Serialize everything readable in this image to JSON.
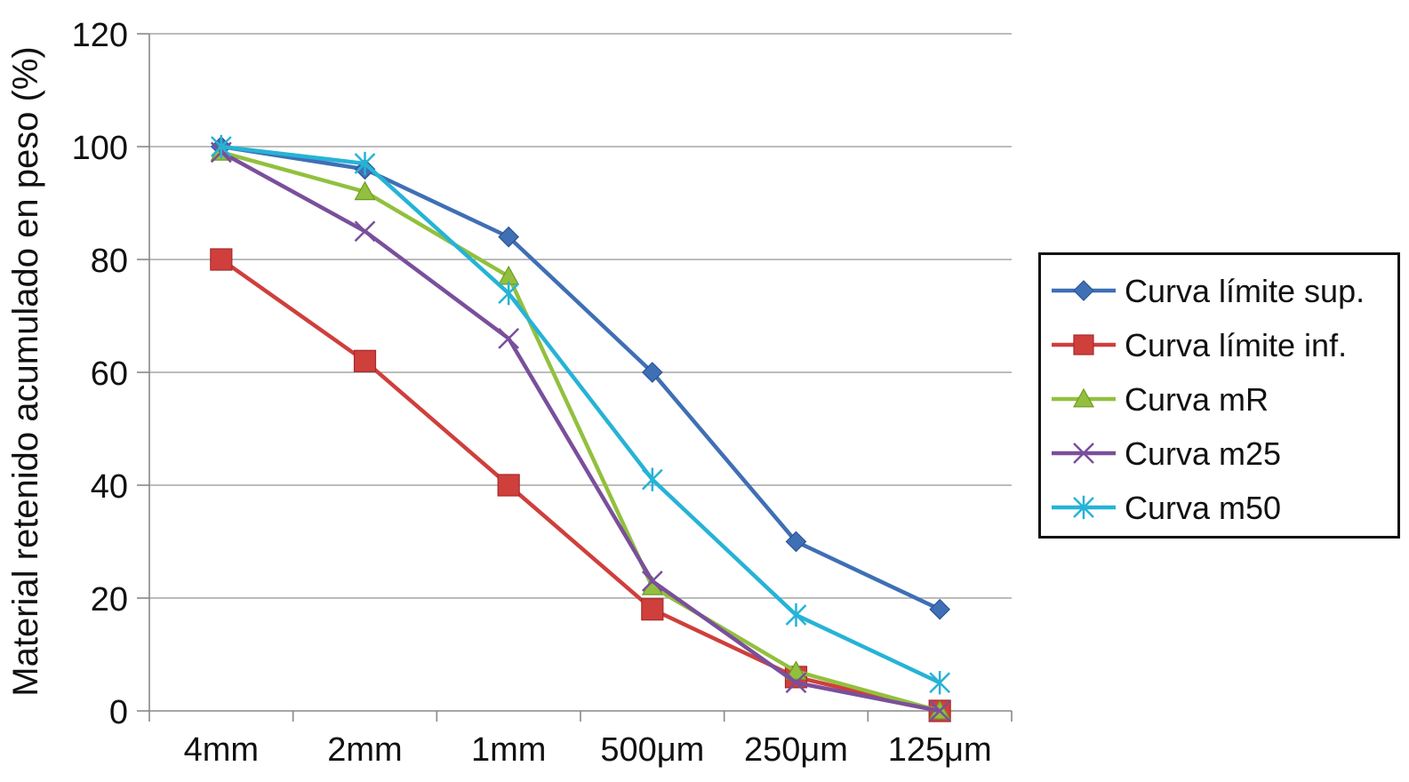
{
  "chart_data": {
    "type": "line",
    "title": "",
    "xlabel": "",
    "ylabel": "Material retenido acumulado en peso (%)",
    "categories": [
      "4mm",
      "2mm",
      "1mm",
      "500μm",
      "250μm",
      "125μm"
    ],
    "ylim": [
      0,
      120
    ],
    "yticks": [
      "0",
      "20",
      "40",
      "60",
      "80",
      "100",
      "120"
    ],
    "grid": true,
    "legend_position": "right",
    "series": [
      {
        "name": "Curva límite sup.",
        "values": [
          100,
          96,
          84,
          60,
          30,
          18
        ],
        "color": "#3f6fb5",
        "marker": "diamond"
      },
      {
        "name": "Curva límite inf.",
        "values": [
          80,
          62,
          40,
          18,
          6,
          0
        ],
        "color": "#cf3f3c",
        "marker": "square"
      },
      {
        "name": "Curva mR",
        "values": [
          99,
          92,
          77,
          22,
          7,
          0
        ],
        "color": "#92c03e",
        "marker": "triangle"
      },
      {
        "name": "Curva m25",
        "values": [
          99,
          85,
          66,
          23,
          5,
          0
        ],
        "color": "#7a4f9b",
        "marker": "x"
      },
      {
        "name": "Curva m50",
        "values": [
          100,
          97,
          74,
          41,
          17,
          5
        ],
        "color": "#26b3d6",
        "marker": "star"
      }
    ]
  }
}
